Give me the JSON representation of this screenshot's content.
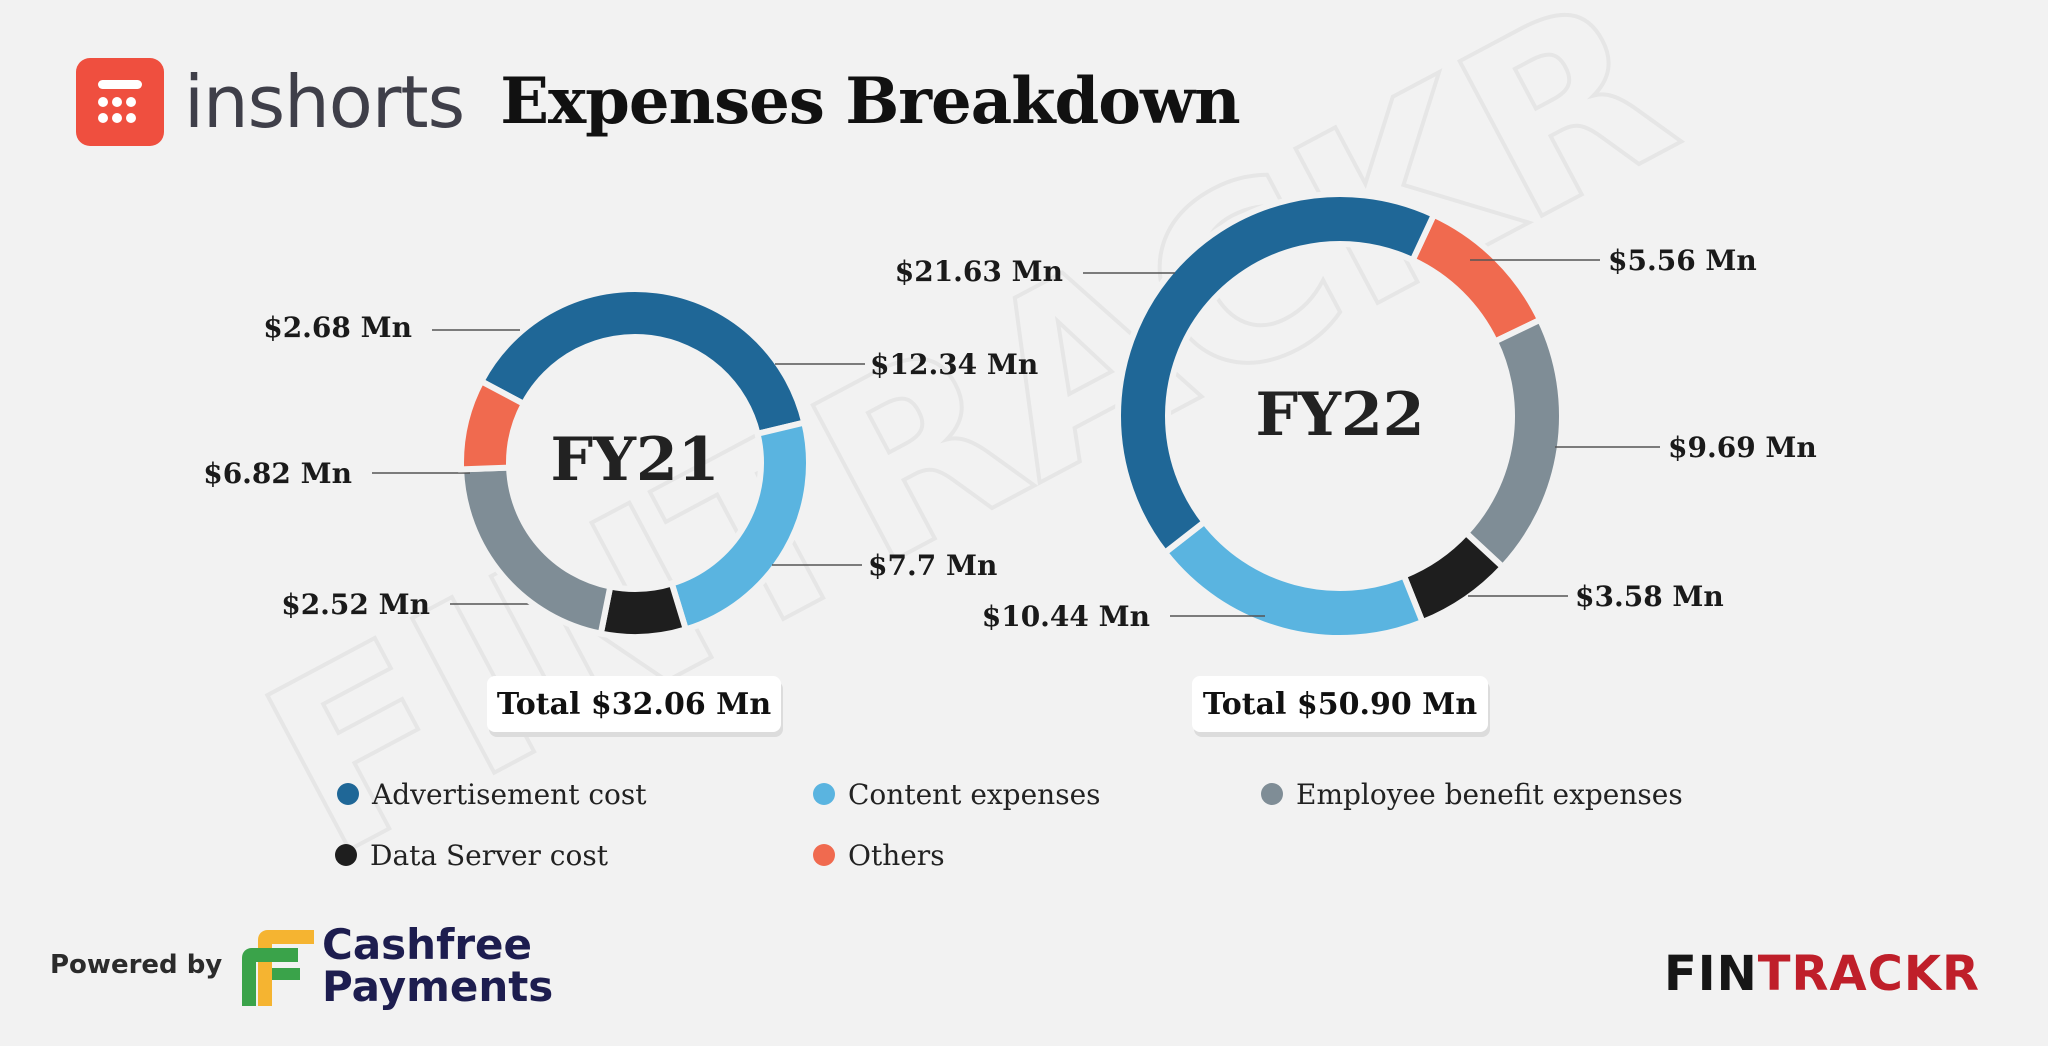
{
  "header": {
    "brand": "inshorts",
    "title": "Expenses Breakdown"
  },
  "footer": {
    "powered_by": "Powered by",
    "partner_line1": "Cashfree",
    "partner_line2": "Payments",
    "brand_prefix": "FIN",
    "brand_suffix": "TRACKR"
  },
  "watermark": "FINTRACKR",
  "colors": {
    "advertisement": "#1f6797",
    "content": "#5ab4e0",
    "employee": "#7f8d96",
    "server": "#1e1e1e",
    "others": "#f06a4f",
    "logo": "#ef4f3f"
  },
  "chart_data": [
    {
      "type": "pie",
      "donut": true,
      "center_label": "FY21",
      "total_label": "Total $32.06 Mn",
      "slices": [
        {
          "category": "Advertisement cost",
          "value": 12.34,
          "label": "$12.34 Mn",
          "color": "#1f6797"
        },
        {
          "category": "Content expenses",
          "value": 7.7,
          "label": "$7.7 Mn",
          "color": "#5ab4e0"
        },
        {
          "category": "Data Server cost",
          "value": 2.52,
          "label": "$2.52 Mn",
          "color": "#1e1e1e"
        },
        {
          "category": "Employee benefit expenses",
          "value": 6.82,
          "label": "$6.82 Mn",
          "color": "#7f8d96"
        },
        {
          "category": "Others",
          "value": 2.68,
          "label": "$2.68 Mn",
          "color": "#f06a4f"
        }
      ]
    },
    {
      "type": "pie",
      "donut": true,
      "center_label": "FY22",
      "total_label": "Total $50.90 Mn",
      "slices": [
        {
          "category": "Others",
          "value": 5.56,
          "label": "$5.56 Mn",
          "color": "#f06a4f"
        },
        {
          "category": "Employee benefit expenses",
          "value": 9.69,
          "label": "$9.69 Mn",
          "color": "#7f8d96"
        },
        {
          "category": "Data Server cost",
          "value": 3.58,
          "label": "$3.58 Mn",
          "color": "#1e1e1e"
        },
        {
          "category": "Content expenses",
          "value": 10.44,
          "label": "$10.44 Mn",
          "color": "#5ab4e0"
        },
        {
          "category": "Advertisement cost",
          "value": 21.63,
          "label": "$21.63 Mn",
          "color": "#1f6797"
        }
      ]
    }
  ],
  "legend": [
    {
      "label": "Advertisement cost",
      "color": "#1f6797"
    },
    {
      "label": "Content expenses",
      "color": "#5ab4e0"
    },
    {
      "label": "Employee benefit expenses",
      "color": "#7f8d96"
    },
    {
      "label": "Data Server cost",
      "color": "#1e1e1e"
    },
    {
      "label": "Others",
      "color": "#f06a4f"
    }
  ]
}
